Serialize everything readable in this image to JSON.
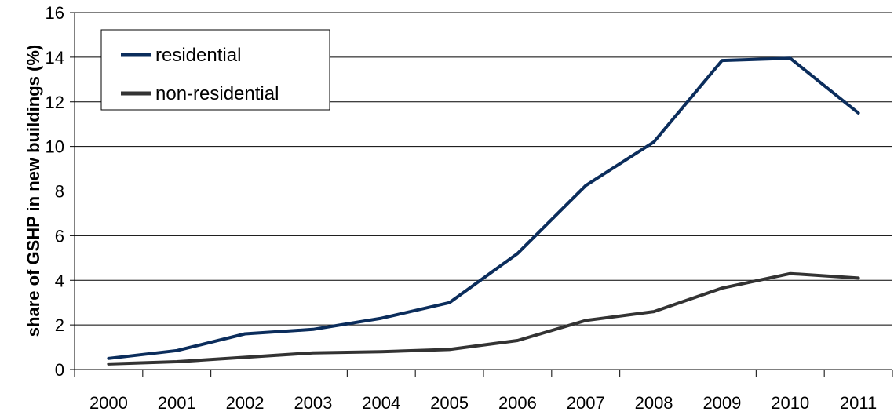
{
  "chart_data": {
    "type": "line",
    "title": "",
    "xlabel": "",
    "ylabel": "share of GSHP in new buildings (%)",
    "x": [
      "2000",
      "2001",
      "2002",
      "2003",
      "2004",
      "2005",
      "2006",
      "2007",
      "2008",
      "2009",
      "2010",
      "2011"
    ],
    "ylim": [
      0,
      16
    ],
    "yticks": [
      "0",
      "2",
      "4",
      "6",
      "8",
      "10",
      "12",
      "14",
      "16"
    ],
    "grid": true,
    "legend_position": "top-left",
    "series": [
      {
        "name": "residential",
        "color": "#0b2d5c",
        "values": [
          0.5,
          0.85,
          1.6,
          1.8,
          2.3,
          3.0,
          5.2,
          8.25,
          10.2,
          13.85,
          13.95,
          11.5
        ]
      },
      {
        "name": "non-residential",
        "color": "#333333",
        "values": [
          0.25,
          0.35,
          0.55,
          0.75,
          0.8,
          0.9,
          1.3,
          2.2,
          2.6,
          3.65,
          4.3,
          4.1
        ]
      }
    ]
  }
}
